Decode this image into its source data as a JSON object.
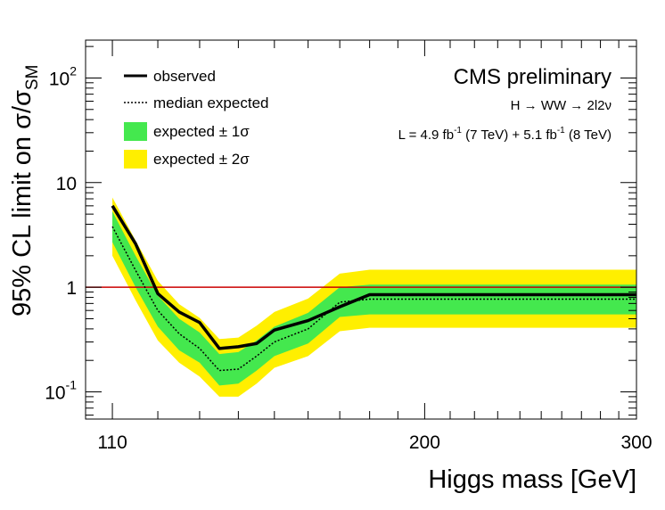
{
  "chart_data": {
    "type": "line",
    "xlabel": "Higgs mass [GeV]",
    "ylabel": "95% CL limit on σ/σ",
    "ylabel_sub": "SM",
    "x_scale": "log",
    "y_scale": "log",
    "xlim": [
      104.5,
      300
    ],
    "ylim": [
      0.055,
      230
    ],
    "x_tick_labels": [
      {
        "value": 110,
        "text": "110"
      },
      {
        "value": 200,
        "text": "200"
      },
      {
        "value": 300,
        "text": "300"
      }
    ],
    "y_tick_labels": [
      {
        "value": 100,
        "base": "10",
        "exp": "2"
      },
      {
        "value": 10,
        "base": "10",
        "exp": ""
      },
      {
        "value": 1,
        "base": "1",
        "exp": ""
      },
      {
        "value": 0.1,
        "base": "10",
        "exp": "-1"
      }
    ],
    "annotations": {
      "experiment": "CMS preliminary",
      "process": "H → WW → 2l2ν",
      "lumi_prefix": "L = 4.9 fb",
      "lumi_exp1": "-1",
      "lumi_middle": " (7 TeV) + 5.1 fb",
      "lumi_exp2": "-1",
      "lumi_suffix": " (8 TeV)"
    },
    "legend": [
      {
        "key": "observed",
        "label": "observed",
        "style": "solid-line"
      },
      {
        "key": "expected",
        "label": "median expected",
        "style": "dotted-line"
      },
      {
        "key": "band1",
        "label": "expected ± 1σ",
        "style": "box",
        "color": "#44e84e"
      },
      {
        "key": "band2",
        "label": "expected ± 2σ",
        "style": "box",
        "color": "#ffef00"
      }
    ],
    "reference_line": {
      "y": 1,
      "color": "#cc0000"
    },
    "colors": {
      "band1": "#44e84e",
      "band2": "#ffef00",
      "observed": "#000000",
      "expected": "#000000"
    },
    "x": [
      110,
      115,
      120,
      125,
      130,
      135,
      140,
      145,
      150,
      160,
      170,
      180,
      190,
      200,
      250,
      300
    ],
    "series": [
      {
        "name": "observed",
        "values": [
          6.0,
          2.6,
          0.87,
          0.58,
          0.46,
          0.26,
          0.27,
          0.29,
          0.39,
          0.48,
          0.65,
          0.85,
          0.85,
          0.85,
          0.85,
          0.85
        ]
      },
      {
        "name": "median expected",
        "values": [
          3.8,
          1.45,
          0.6,
          0.36,
          0.26,
          0.16,
          0.165,
          0.22,
          0.3,
          0.4,
          0.72,
          0.77,
          0.77,
          0.77,
          0.77,
          0.77
        ]
      },
      {
        "name": "expected ± 1σ",
        "low": [
          2.7,
          1.0,
          0.42,
          0.25,
          0.19,
          0.115,
          0.12,
          0.16,
          0.22,
          0.29,
          0.52,
          0.55,
          0.55,
          0.55,
          0.55,
          0.55
        ],
        "high": [
          5.3,
          2.0,
          0.83,
          0.5,
          0.37,
          0.23,
          0.24,
          0.31,
          0.42,
          0.57,
          1.0,
          1.06,
          1.06,
          1.06,
          1.06,
          1.06
        ]
      },
      {
        "name": "expected ± 2σ",
        "low": [
          2.0,
          0.75,
          0.31,
          0.19,
          0.14,
          0.09,
          0.09,
          0.12,
          0.17,
          0.22,
          0.38,
          0.41,
          0.41,
          0.41,
          0.41,
          0.41
        ],
        "high": [
          7.2,
          2.8,
          1.15,
          0.69,
          0.51,
          0.32,
          0.33,
          0.43,
          0.58,
          0.78,
          1.35,
          1.47,
          1.47,
          1.47,
          1.47,
          1.47
        ]
      }
    ]
  }
}
